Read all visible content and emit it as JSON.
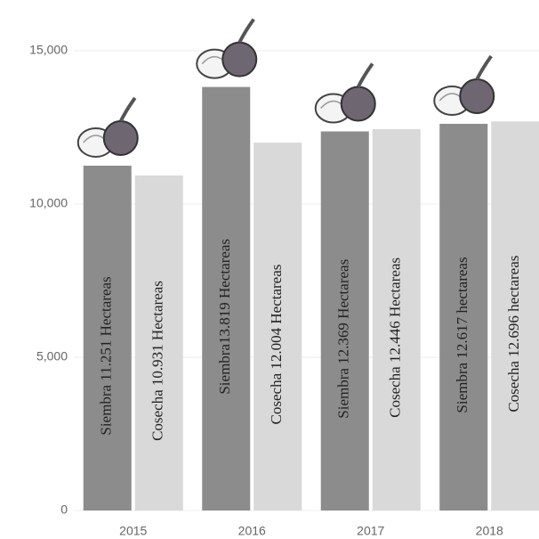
{
  "chart_data": {
    "type": "bar",
    "categories": [
      "2015",
      "2016",
      "2017",
      "2018"
    ],
    "series": [
      {
        "color": "#8c8c8c",
        "values": [
          11251,
          13819,
          12369,
          12617
        ],
        "value_labels": [
          "Siembra 11.251 Hectareas",
          "Siembra13.819  Hectareas",
          "Siembra 12.369  Hectareas",
          "Siembra 12.617 hectareas"
        ]
      },
      {
        "color": "#d9d9d9",
        "values": [
          10931,
          12004,
          12446,
          12696
        ],
        "value_labels": [
          "Cosecha 10.931  Hectareas",
          "Cosecha 12.004  Hectareas",
          "Cosecha 12.446  Hectareas",
          "Cosecha 12.696 hectareas"
        ]
      }
    ],
    "ylim": [
      0,
      15000
    ],
    "yticks": [
      0,
      {
        "value": 5000,
        "label": "5,000"
      },
      {
        "value": 10000,
        "label": "10,000"
      },
      {
        "value": 15000,
        "label": "15,000"
      }
    ],
    "grid": true
  }
}
